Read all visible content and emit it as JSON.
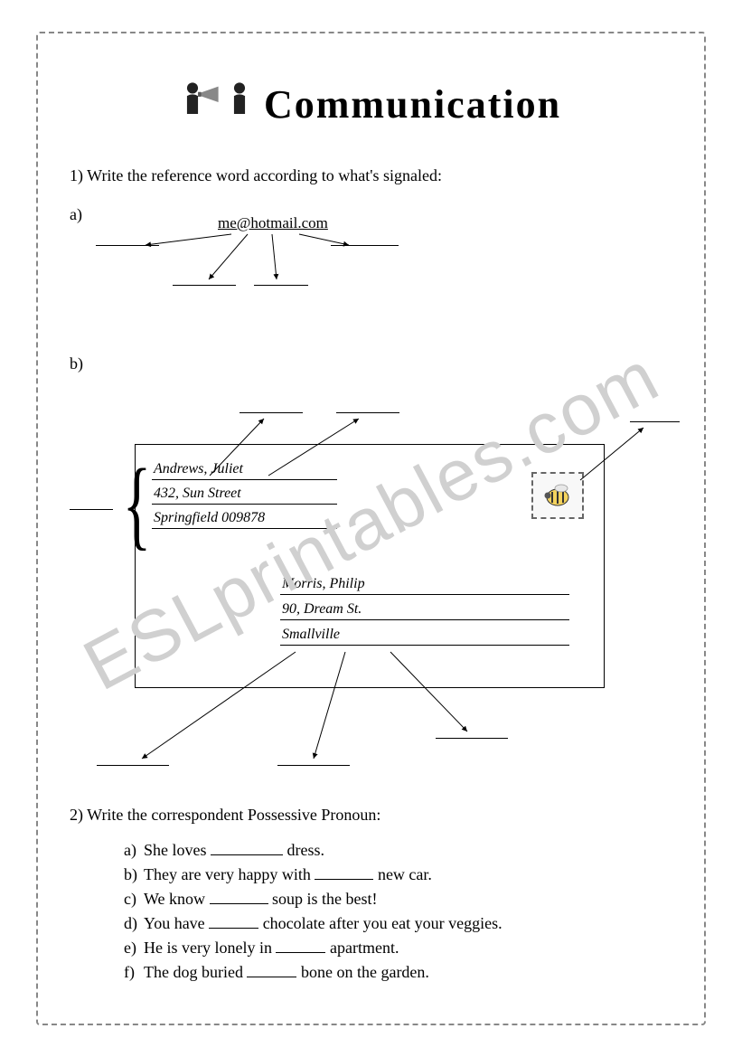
{
  "watermark": "ESLprintables.com",
  "title": "Communication",
  "q1_text": "1) Write the reference word according to what's signaled:",
  "part_a_label": "a)",
  "email": "me@hotmail.com",
  "part_b_label": "b)",
  "envelope": {
    "sender_name": "Andrews, Juliet",
    "sender_addr": "432, Sun Street",
    "sender_city": "Springfield    009878",
    "recip_name": "Morris, Philip",
    "recip_addr": "90, Dream St.",
    "recip_city": "Smallville"
  },
  "q2_text": "2) Write the correspondent Possessive Pronoun:",
  "q2_items": [
    {
      "letter": "a)",
      "pre": "She loves ",
      "width": 80,
      "post": " dress."
    },
    {
      "letter": "b)",
      "pre": "They are very happy with ",
      "width": 65,
      "post": " new car."
    },
    {
      "letter": "c)",
      "pre": "We know ",
      "width": 65,
      "post": " soup is the best!"
    },
    {
      "letter": "d)",
      "pre": "You have ",
      "width": 55,
      "post": " chocolate after you eat your veggies."
    },
    {
      "letter": "e)",
      "pre": "He is very lonely in ",
      "width": 55,
      "post": " apartment."
    },
    {
      "letter": "f)",
      "pre": "The dog buried ",
      "width": 55,
      "post": " bone on the garden."
    }
  ],
  "blank_widths": {
    "a": [
      70,
      70,
      60,
      75
    ]
  },
  "colors": {
    "text": "#000000",
    "border": "#888888",
    "watermark": "#d0d0d0"
  }
}
